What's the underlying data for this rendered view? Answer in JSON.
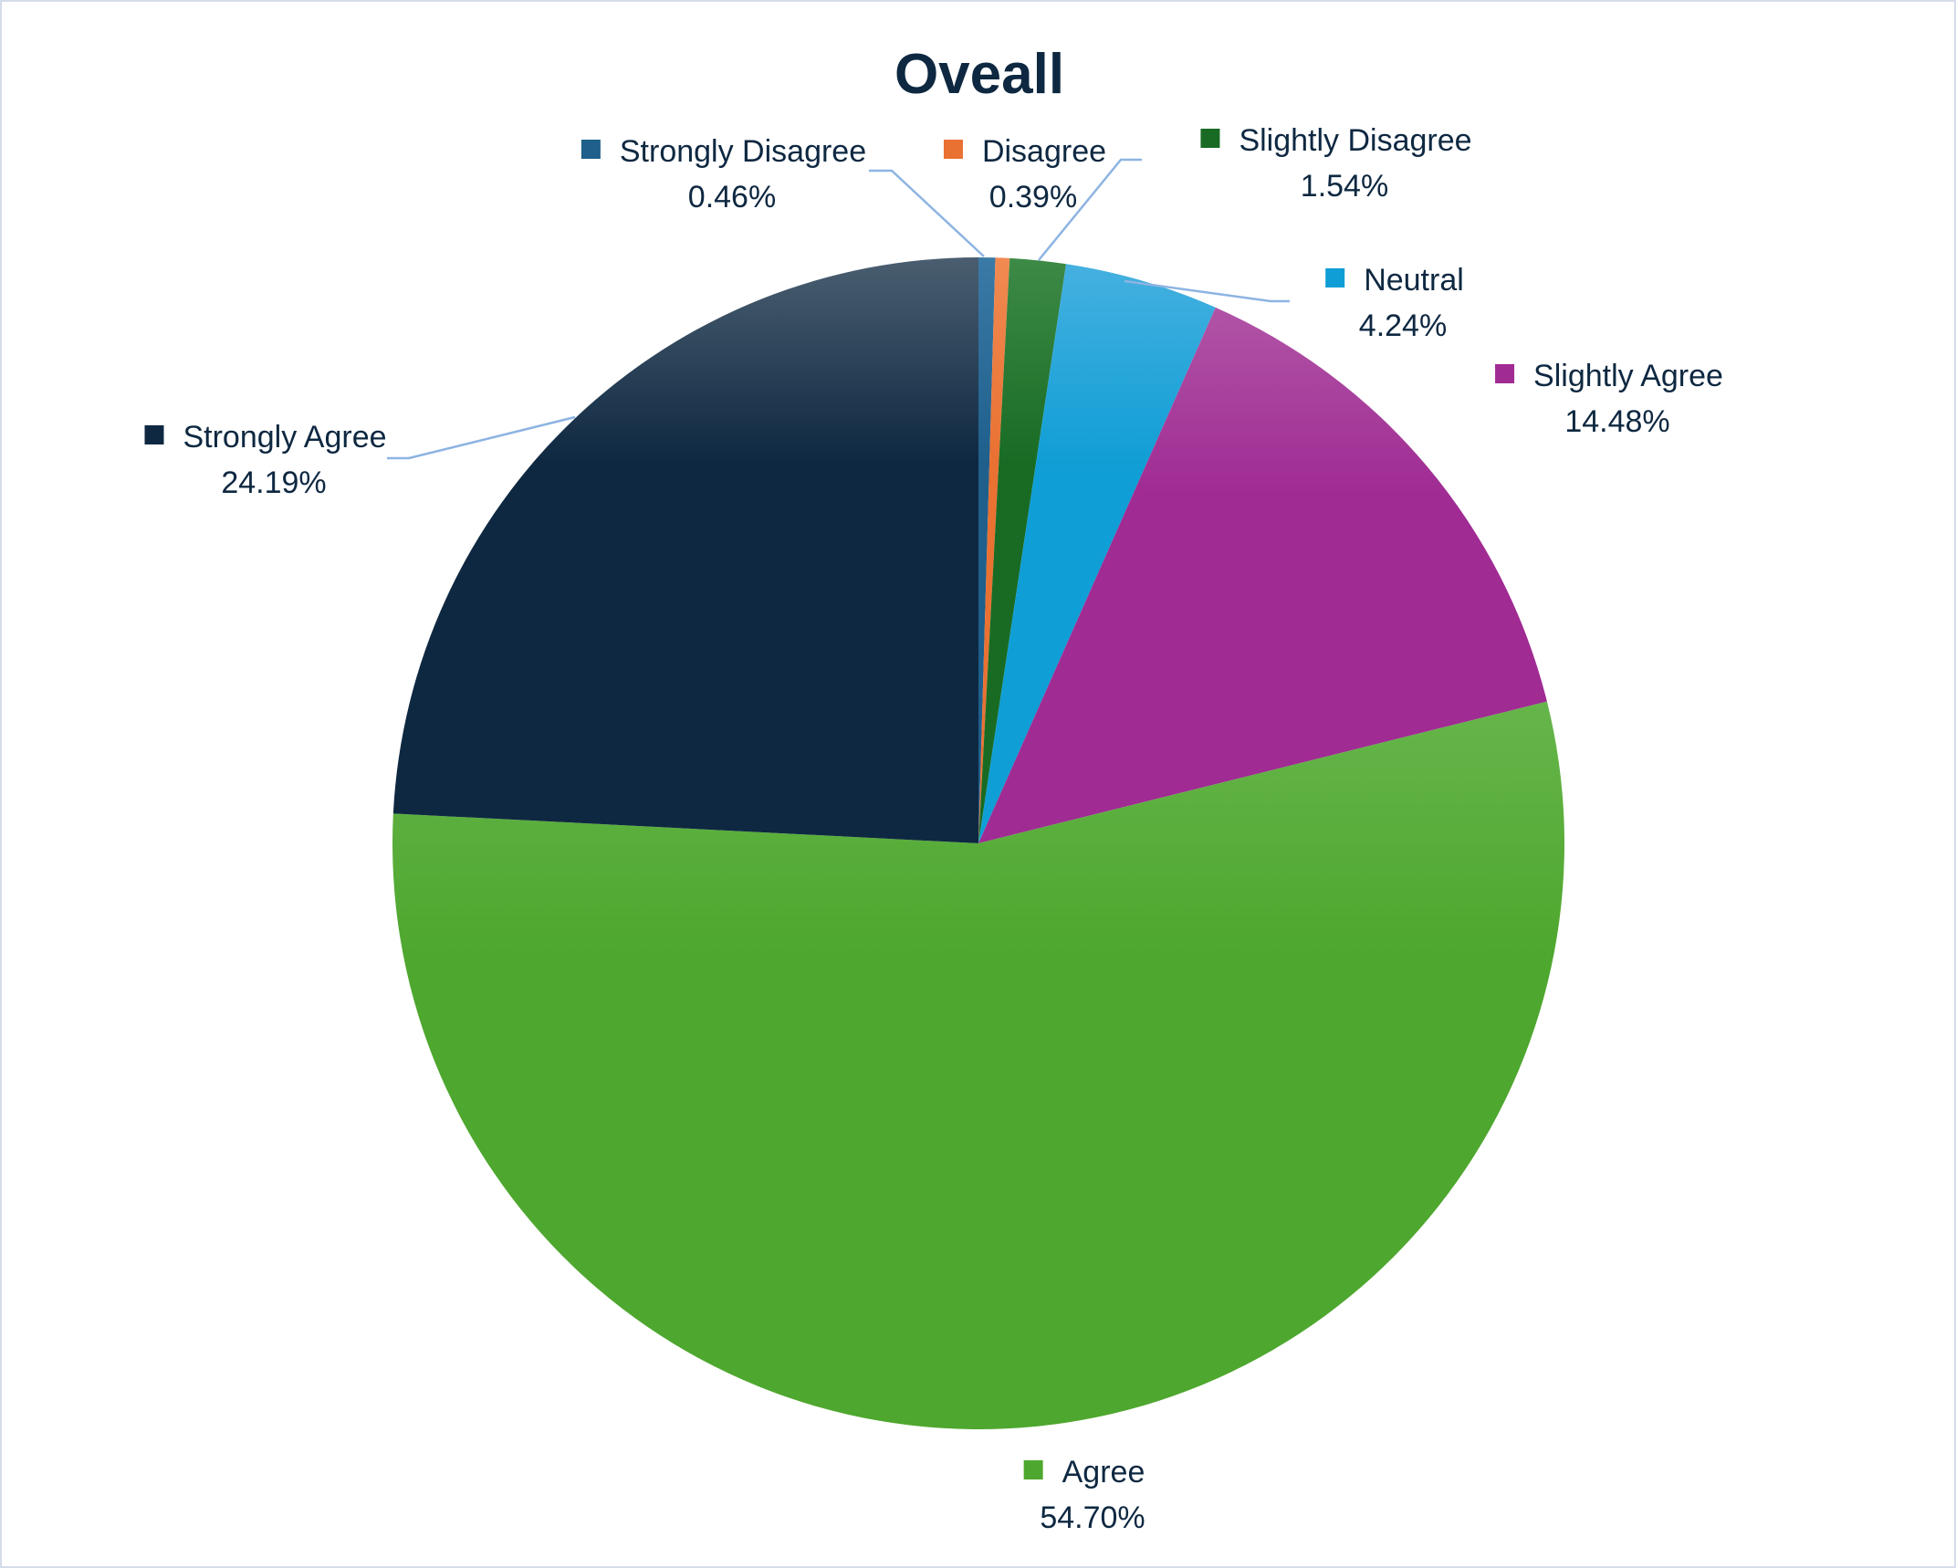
{
  "chart_data": {
    "type": "pie",
    "title": "Oveall",
    "start_angle_deg": 0,
    "direction": "clockwise",
    "slices": [
      {
        "label": "Strongly Disagree",
        "value": 0.46,
        "value_label": "0.46%",
        "color": "#1f5f8b",
        "color_light": "#3b7aa6"
      },
      {
        "label": "Disagree",
        "value": 0.39,
        "value_label": "0.39%",
        "color": "#e97132",
        "color_light": "#f08a52"
      },
      {
        "label": "Slightly Disagree",
        "value": 1.54,
        "value_label": "1.54%",
        "color": "#196b24",
        "color_light": "#3d8a46"
      },
      {
        "label": "Neutral",
        "value": 4.24,
        "value_label": "4.24%",
        "color": "#0f9ed5",
        "color_light": "#45b0e0"
      },
      {
        "label": "Slightly Agree",
        "value": 14.48,
        "value_label": "14.48%",
        "color": "#a02b93",
        "color_light": "#b054a6"
      },
      {
        "label": "Agree",
        "value": 54.7,
        "value_label": "54.70%",
        "color": "#4ea72e",
        "color_light": "#66b54b"
      },
      {
        "label": "Strongly Agree",
        "value": 24.19,
        "value_label": "24.19%",
        "color": "#0e2841",
        "color_light": "#4a5e70"
      }
    ]
  }
}
